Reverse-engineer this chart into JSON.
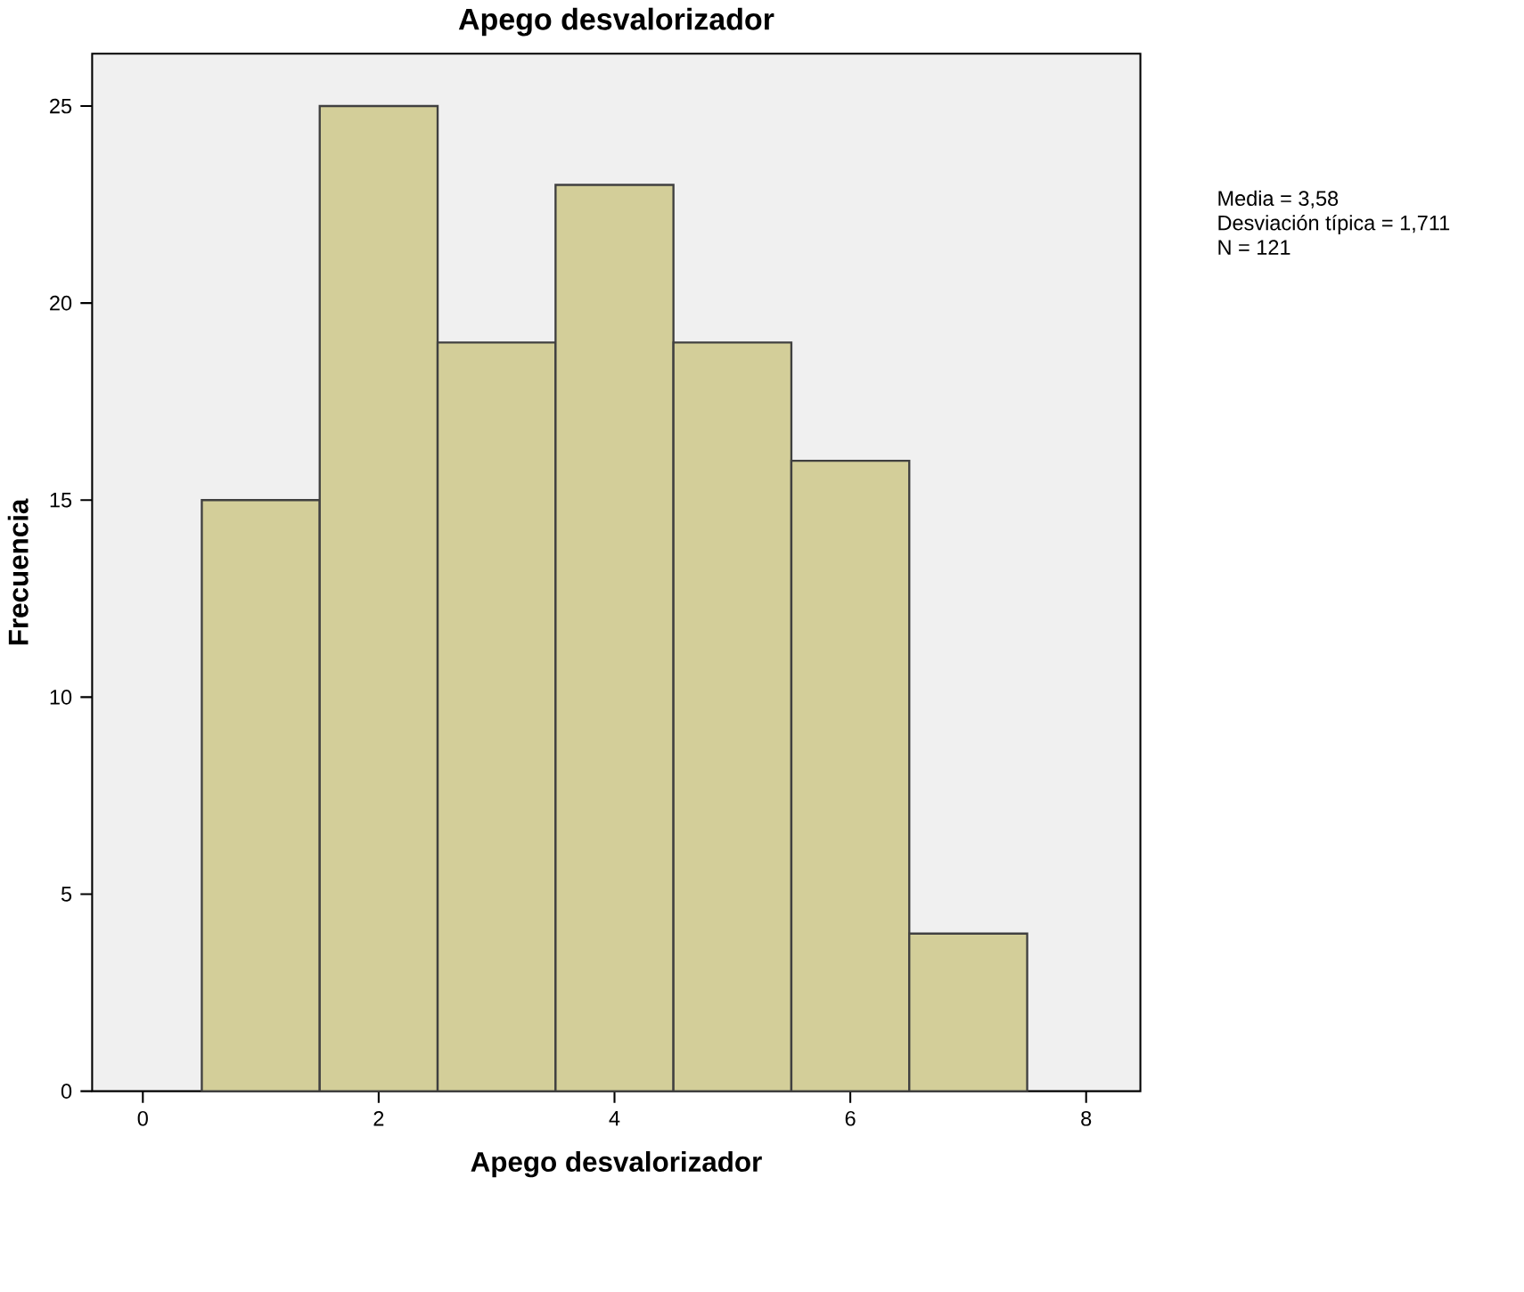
{
  "chart_data": {
    "type": "histogram",
    "title": "Apego desvalorizador",
    "xlabel": "Apego desvalorizador",
    "ylabel": "Frecuencia",
    "bins": [
      0.5,
      1.5,
      2.5,
      3.5,
      4.5,
      5.5,
      6.5,
      7.5
    ],
    "values": [
      15,
      25,
      19,
      23,
      19,
      16,
      4
    ],
    "color": "#d3ce99",
    "xlim": [
      -0.43,
      8.46
    ],
    "ylim": [
      0,
      26.33
    ],
    "xticks": [
      0,
      2,
      4,
      6,
      8
    ],
    "yticks": [
      0,
      5,
      10,
      15,
      20,
      25
    ],
    "annotations": [
      "Media = 3,58",
      "Desviación típica = 1,711",
      "N = 121"
    ]
  }
}
